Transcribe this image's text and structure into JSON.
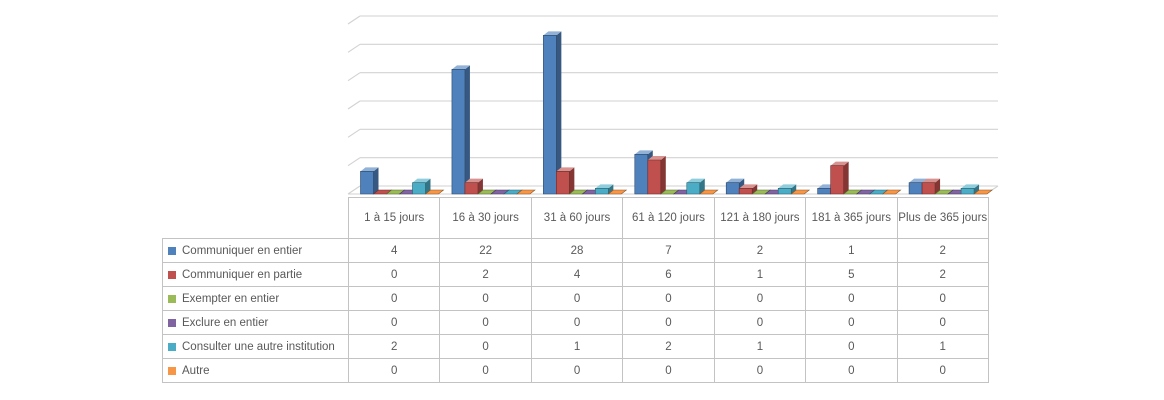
{
  "chart_data": {
    "type": "bar",
    "variant": "3d-clustered-column",
    "title": "",
    "xlabel": "",
    "ylabel": "",
    "ylim": [
      0,
      30
    ],
    "grid_step": 5,
    "gridlines": true,
    "legend_position": "data-table-left",
    "categories": [
      "1 à 15 jours",
      "16 à 30 jours",
      "31 à 60 jours",
      "61 à 120 jours",
      "121 à 180 jours",
      "181 à 365 jours",
      "Plus de 365 jours"
    ],
    "series": [
      {
        "name": "Communiquer en entier",
        "color": "#4F81BD",
        "values": [
          4,
          22,
          28,
          7,
          2,
          1,
          2
        ]
      },
      {
        "name": "Communiquer en partie",
        "color": "#C0504D",
        "values": [
          0,
          2,
          4,
          6,
          1,
          5,
          2
        ]
      },
      {
        "name": "Exempter en entier",
        "color": "#9BBB59",
        "values": [
          0,
          0,
          0,
          0,
          0,
          0,
          0
        ]
      },
      {
        "name": "Exclure en entier",
        "color": "#8064A2",
        "values": [
          0,
          0,
          0,
          0,
          0,
          0,
          0
        ]
      },
      {
        "name": "Consulter une autre institution",
        "color": "#4BACC6",
        "values": [
          2,
          0,
          1,
          2,
          1,
          0,
          1
        ]
      },
      {
        "name": "Autre",
        "color": "#F79646",
        "values": [
          0,
          0,
          0,
          0,
          0,
          0,
          0
        ]
      }
    ]
  },
  "colors": {
    "gridline": "#D2D2D2",
    "table_border": "#C3C3C3",
    "text": "#595959",
    "background": "#FFFFFF"
  }
}
